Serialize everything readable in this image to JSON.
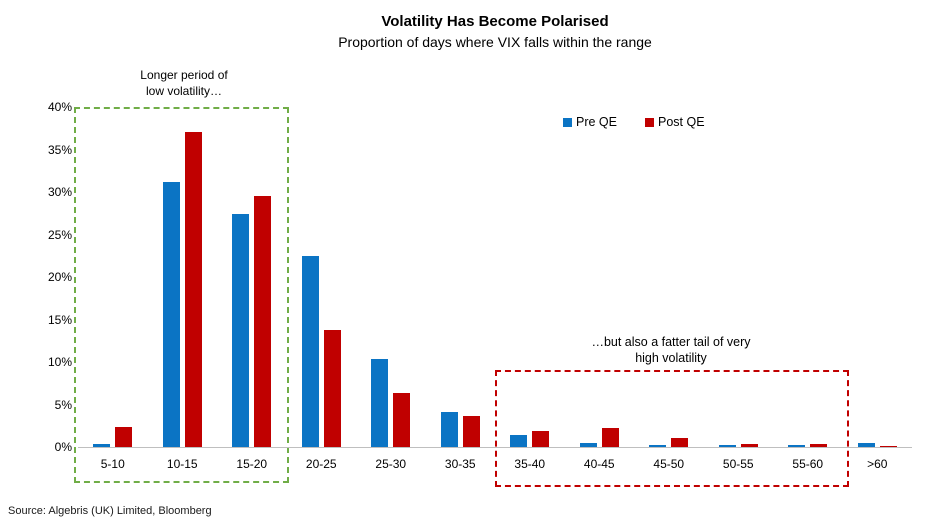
{
  "header": {
    "title": "Volatility Has Become Polarised",
    "subtitle": "Proportion of days where VIX falls within the range"
  },
  "legend": [
    {
      "label": "Pre QE",
      "color": "#0B74C4"
    },
    {
      "label": "Post QE",
      "color": "#C00000"
    }
  ],
  "annotations": {
    "low_vol": {
      "line1": "Longer period of",
      "line2": "low volatility…",
      "box_color": "#70AD47"
    },
    "high_vol": {
      "line1": "…but also a fatter tail of very",
      "line2": "high volatility",
      "box_color": "#C00000"
    }
  },
  "source": "Source: Algebris (UK) Limited, Bloomberg",
  "chart_data": {
    "type": "bar",
    "title": "Volatility Has Become Polarised",
    "subtitle": "Proportion of days where VIX falls within the range",
    "categories": [
      "5-10",
      "10-15",
      "15-20",
      "20-25",
      "25-30",
      "30-35",
      "35-40",
      "40-45",
      "45-50",
      "50-55",
      "55-60",
      ">60"
    ],
    "series": [
      {
        "name": "Pre QE",
        "color": "#0B74C4",
        "values": [
          0.3,
          31.2,
          27.4,
          22.5,
          10.4,
          4.1,
          1.4,
          0.5,
          0.2,
          0.2,
          0.2,
          0.5
        ]
      },
      {
        "name": "Post QE",
        "color": "#C00000",
        "values": [
          2.4,
          37.0,
          29.5,
          13.8,
          6.3,
          3.7,
          1.9,
          2.2,
          1.1,
          0.4,
          0.3,
          0.1
        ]
      }
    ],
    "xlabel": "",
    "ylabel": "",
    "ylim": [
      0,
      40
    ],
    "ytick_labels": [
      "0%",
      "5%",
      "10%",
      "15%",
      "20%",
      "25%",
      "30%",
      "35%",
      "40%"
    ],
    "ytick_values": [
      0,
      5,
      10,
      15,
      20,
      25,
      30,
      35,
      40
    ],
    "grid": false,
    "legend_position": "top-center",
    "axis_color": "#BFBFBF"
  }
}
